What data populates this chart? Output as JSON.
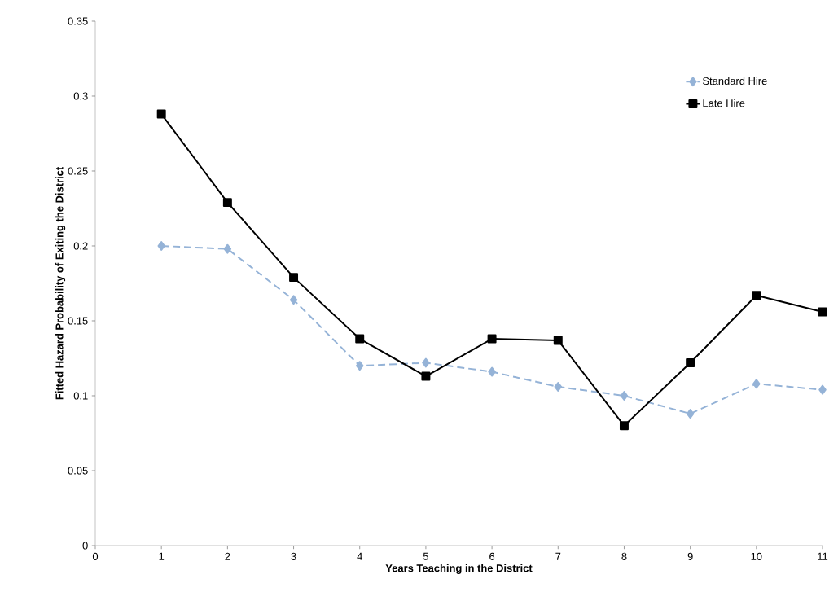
{
  "chart_data": {
    "type": "line",
    "xlabel": "Years Teaching in the District",
    "ylabel": "Fitted Hazard Probability of Exiting the District",
    "x": [
      1,
      2,
      3,
      4,
      5,
      6,
      7,
      8,
      9,
      10,
      11
    ],
    "series": [
      {
        "name": "Standard Hire",
        "color": "#95b3d7",
        "marker": "diamond",
        "line_style": "dashed",
        "values": [
          0.2,
          0.198,
          0.164,
          0.12,
          0.122,
          0.116,
          0.106,
          0.1,
          0.088,
          0.108,
          0.104
        ]
      },
      {
        "name": "Late Hire",
        "color": "#000000",
        "marker": "square",
        "line_style": "solid",
        "values": [
          0.288,
          0.229,
          0.179,
          0.138,
          0.113,
          0.138,
          0.137,
          0.08,
          0.122,
          0.167,
          0.156
        ]
      }
    ],
    "xlim": [
      0,
      11
    ],
    "xticks": [
      0,
      1,
      2,
      3,
      4,
      5,
      6,
      7,
      8,
      9,
      10,
      11
    ],
    "ylim": [
      0,
      0.35
    ],
    "yticks": [
      0,
      0.05,
      0.1,
      0.15,
      0.2,
      0.25,
      0.3,
      0.35
    ],
    "grid": false,
    "legend": "top right"
  }
}
